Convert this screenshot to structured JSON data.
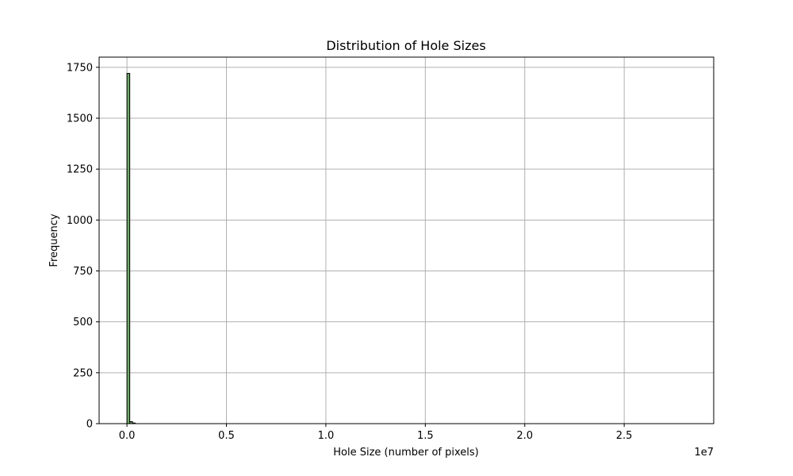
{
  "chart_data": {
    "type": "bar",
    "title": "Distribution of Hole Sizes",
    "xlabel": "Hole Size (number of pixels)",
    "ylabel": "Frequency",
    "x_scale_label": "1e7",
    "xlim": [
      -1400000,
      29500000
    ],
    "ylim": [
      0,
      1800
    ],
    "x_ticks": [
      0,
      5000000,
      10000000,
      15000000,
      20000000,
      25000000
    ],
    "x_tick_labels": [
      "0.0",
      "0.5",
      "1.0",
      "1.5",
      "2.0",
      "2.5"
    ],
    "y_ticks": [
      0,
      250,
      500,
      750,
      1000,
      1250,
      1500,
      1750
    ],
    "y_tick_labels": [
      "0",
      "250",
      "500",
      "750",
      "1000",
      "1250",
      "1500",
      "1750"
    ],
    "grid": true,
    "bar_color": "#6fa86a",
    "edge_color": "#000000",
    "bins": [
      {
        "x0": 0,
        "x1": 140000,
        "count": 1720
      },
      {
        "x0": 140000,
        "x1": 280000,
        "count": 10
      },
      {
        "x0": 280000,
        "x1": 420000,
        "count": 3
      },
      {
        "x0": 420000,
        "x1": 28100000,
        "count": 0
      }
    ]
  }
}
